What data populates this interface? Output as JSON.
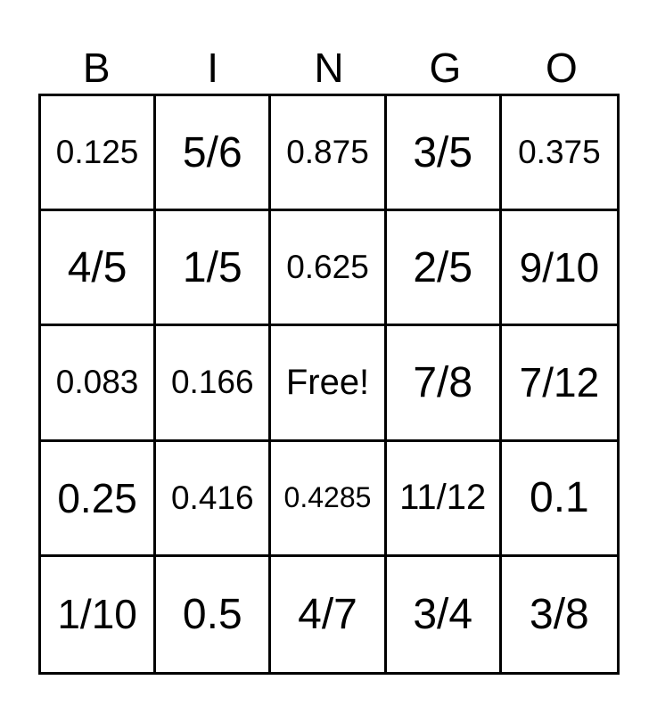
{
  "header": [
    "B",
    "I",
    "N",
    "G",
    "O"
  ],
  "cells": [
    [
      "0.125",
      "5/6",
      "0.875",
      "3/5",
      "0.375"
    ],
    [
      "4/5",
      "1/5",
      "0.625",
      "2/5",
      "9/10"
    ],
    [
      "0.083",
      "0.166",
      "Free!",
      "7/8",
      "7/12"
    ],
    [
      "0.25",
      "0.416",
      "0.4285",
      "11/12",
      "0.1"
    ],
    [
      "1/10",
      "0.5",
      "4/7",
      "3/4",
      "3/8"
    ]
  ]
}
